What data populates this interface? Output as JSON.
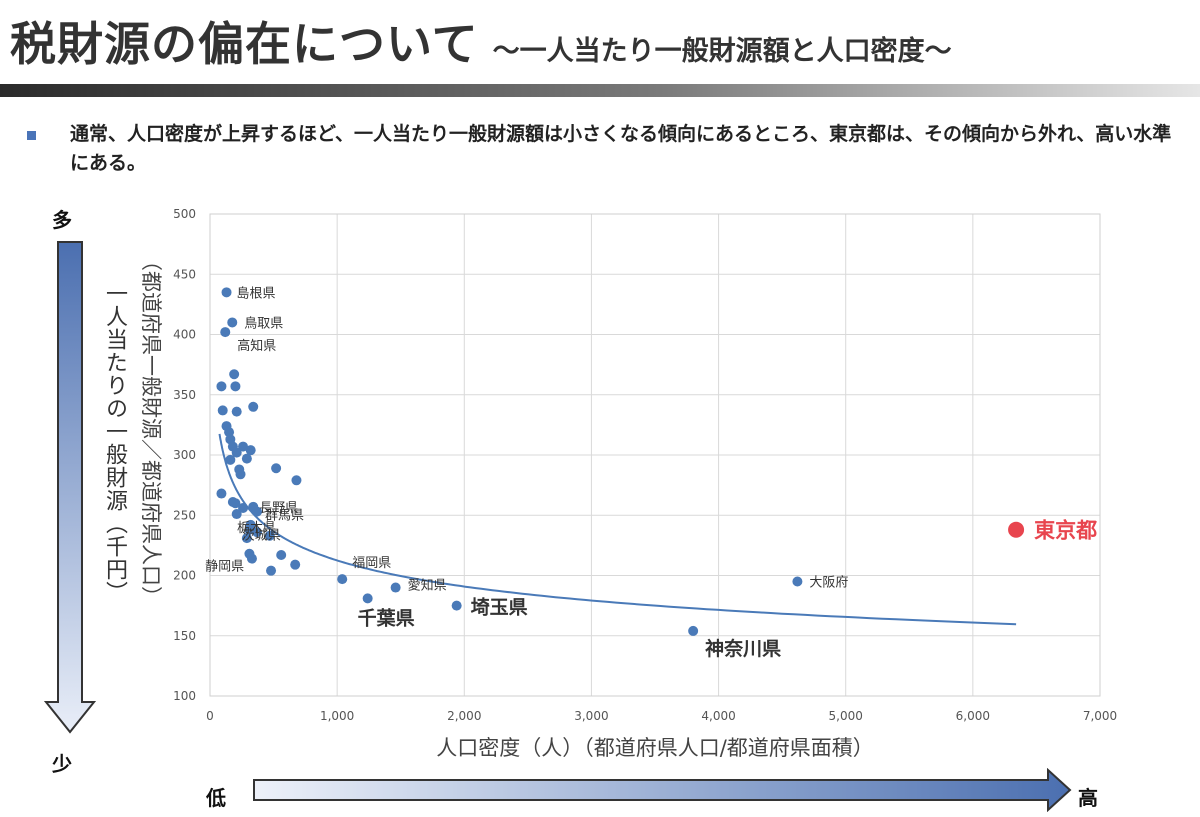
{
  "header": {
    "title": "税財源の偏在について",
    "subtitle": "～一人当たり一般財源額と人口密度～"
  },
  "bullet": "通常、人口密度が上昇するほど、一人当たり一般財源額は小さくなる傾向にあるところ、東京都は、その傾向から外れ、高い水準にある。",
  "side": {
    "top_label": "多",
    "bottom_label": "少",
    "left_label": "低",
    "right_label": "高",
    "y_description": "一人当たりの一般財源（千円）"
  },
  "chart_data": {
    "type": "scatter",
    "title": "",
    "xlabel": "人口密度（人）（都道府県人口/都道府県面積）",
    "ylabel": "（都道府県一般財源／都道府県人口）",
    "xlim": [
      0,
      7000
    ],
    "ylim": [
      100,
      500
    ],
    "xticks": [
      0,
      1000,
      2000,
      3000,
      4000,
      5000,
      6000,
      7000
    ],
    "yticks": [
      100,
      150,
      200,
      250,
      300,
      350,
      400,
      450,
      500
    ],
    "xtick_labels": [
      "0",
      "1,000",
      "2,000",
      "3,000",
      "4,000",
      "5,000",
      "6,000",
      "7,000"
    ],
    "ytick_labels": [
      "100",
      "150",
      "200",
      "250",
      "300",
      "350",
      "400",
      "450",
      "500"
    ],
    "grid": true,
    "points": [
      {
        "x": 130,
        "y": 435,
        "label": "島根県",
        "style": "normal"
      },
      {
        "x": 175,
        "y": 410,
        "label": "鳥取県",
        "style": "normal"
      },
      {
        "x": 120,
        "y": 402,
        "label": "高知県",
        "style": "normal"
      },
      {
        "x": 190,
        "y": 367
      },
      {
        "x": 90,
        "y": 357
      },
      {
        "x": 200,
        "y": 357
      },
      {
        "x": 100,
        "y": 337
      },
      {
        "x": 210,
        "y": 336
      },
      {
        "x": 340,
        "y": 340
      },
      {
        "x": 130,
        "y": 324
      },
      {
        "x": 150,
        "y": 319
      },
      {
        "x": 160,
        "y": 313
      },
      {
        "x": 180,
        "y": 307
      },
      {
        "x": 210,
        "y": 302
      },
      {
        "x": 260,
        "y": 307
      },
      {
        "x": 320,
        "y": 304
      },
      {
        "x": 290,
        "y": 297
      },
      {
        "x": 160,
        "y": 296
      },
      {
        "x": 230,
        "y": 288
      },
      {
        "x": 240,
        "y": 284
      },
      {
        "x": 520,
        "y": 289
      },
      {
        "x": 680,
        "y": 279
      },
      {
        "x": 90,
        "y": 268
      },
      {
        "x": 180,
        "y": 261
      },
      {
        "x": 200,
        "y": 260
      },
      {
        "x": 340,
        "y": 257,
        "label": "長野県",
        "style": "normal"
      },
      {
        "x": 260,
        "y": 256
      },
      {
        "x": 210,
        "y": 251
      },
      {
        "x": 370,
        "y": 253,
        "label": "群馬県",
        "style": "normal"
      },
      {
        "x": 320,
        "y": 242
      },
      {
        "x": 310,
        "y": 238
      },
      {
        "x": 370,
        "y": 236,
        "label": "栃木県",
        "style": "normal"
      },
      {
        "x": 290,
        "y": 231
      },
      {
        "x": 470,
        "y": 233,
        "label": "茨城県",
        "style": "normal"
      },
      {
        "x": 310,
        "y": 218
      },
      {
        "x": 330,
        "y": 214
      },
      {
        "x": 560,
        "y": 217
      },
      {
        "x": 480,
        "y": 204
      },
      {
        "x": 670,
        "y": 209,
        "label": "静岡県",
        "style": "normal"
      },
      {
        "x": 1040,
        "y": 197,
        "label": "福岡県",
        "style": "normal"
      },
      {
        "x": 1460,
        "y": 190,
        "label": "愛知県",
        "style": "normal"
      },
      {
        "x": 1240,
        "y": 181,
        "label": "千葉県",
        "style": "big"
      },
      {
        "x": 1940,
        "y": 175,
        "label": "埼玉県",
        "style": "big"
      },
      {
        "x": 3800,
        "y": 154,
        "label": "神奈川県",
        "style": "big"
      },
      {
        "x": 4620,
        "y": 195,
        "label": "大阪府",
        "style": "normal"
      },
      {
        "x": 6340,
        "y": 238,
        "label": "東京都",
        "style": "highlight"
      }
    ],
    "trendline": {
      "type": "power",
      "a": 620,
      "b": -0.155,
      "x_range": [
        75,
        6340
      ]
    },
    "colors": {
      "point": "#4a7ab8",
      "highlight": "#e8454e",
      "trend": "#4a7ab8",
      "grid": "#d9d9d9"
    }
  }
}
